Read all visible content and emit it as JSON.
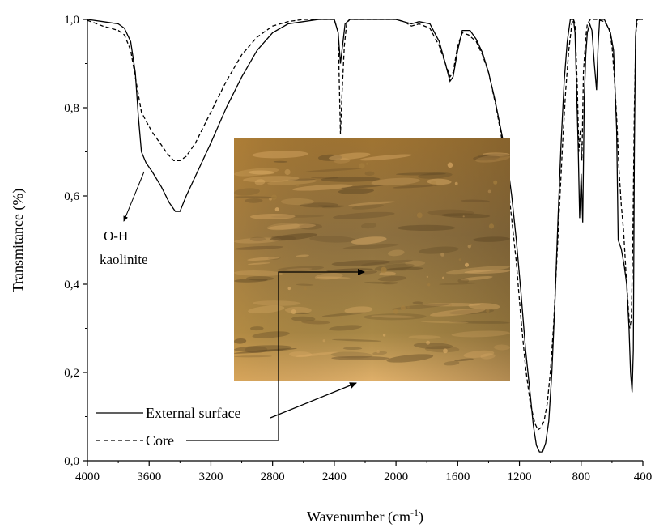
{
  "chart_data": {
    "type": "line",
    "xlabel": "Wavenumber (cm",
    "xlabel_sup": "-1",
    "xlabel_end": ")",
    "ylabel": "Transmitance (%)",
    "xlim": [
      4000,
      400
    ],
    "ylim": [
      0.0,
      1.0
    ],
    "xticks": [
      4000,
      3600,
      3200,
      2800,
      2400,
      2000,
      1600,
      1200,
      800,
      400
    ],
    "yticks": [
      "0,0",
      "0,2",
      "0,4",
      "0,6",
      "0,8",
      "1,0"
    ],
    "yticks_values": [
      0.0,
      0.2,
      0.4,
      0.6,
      0.8,
      1.0
    ],
    "grid": false,
    "legend_position": "bottom-left",
    "annotation": {
      "line1": "O-H",
      "line2": "kaolinite"
    },
    "series": [
      {
        "name": "External surface",
        "style": "solid",
        "color": "#000000",
        "points": [
          [
            4000,
            1.0
          ],
          [
            3900,
            0.995
          ],
          [
            3800,
            0.99
          ],
          [
            3760,
            0.98
          ],
          [
            3720,
            0.95
          ],
          [
            3690,
            0.88
          ],
          [
            3670,
            0.78
          ],
          [
            3650,
            0.7
          ],
          [
            3620,
            0.675
          ],
          [
            3580,
            0.655
          ],
          [
            3520,
            0.62
          ],
          [
            3470,
            0.585
          ],
          [
            3430,
            0.565
          ],
          [
            3400,
            0.565
          ],
          [
            3360,
            0.6
          ],
          [
            3300,
            0.645
          ],
          [
            3200,
            0.72
          ],
          [
            3100,
            0.8
          ],
          [
            3000,
            0.87
          ],
          [
            2900,
            0.93
          ],
          [
            2800,
            0.97
          ],
          [
            2700,
            0.99
          ],
          [
            2600,
            0.995
          ],
          [
            2500,
            1.0
          ],
          [
            2400,
            1.0
          ],
          [
            2375,
            0.97
          ],
          [
            2360,
            0.9
          ],
          [
            2345,
            0.945
          ],
          [
            2330,
            0.99
          ],
          [
            2300,
            1.0
          ],
          [
            2000,
            1.0
          ],
          [
            1950,
            0.995
          ],
          [
            1900,
            0.99
          ],
          [
            1850,
            0.995
          ],
          [
            1780,
            0.99
          ],
          [
            1720,
            0.95
          ],
          [
            1680,
            0.9
          ],
          [
            1650,
            0.86
          ],
          [
            1630,
            0.87
          ],
          [
            1600,
            0.93
          ],
          [
            1570,
            0.975
          ],
          [
            1520,
            0.975
          ],
          [
            1480,
            0.955
          ],
          [
            1440,
            0.925
          ],
          [
            1400,
            0.88
          ],
          [
            1360,
            0.82
          ],
          [
            1320,
            0.75
          ],
          [
            1280,
            0.68
          ],
          [
            1250,
            0.6
          ],
          [
            1220,
            0.5
          ],
          [
            1190,
            0.38
          ],
          [
            1160,
            0.25
          ],
          [
            1130,
            0.15
          ],
          [
            1110,
            0.08
          ],
          [
            1090,
            0.035
          ],
          [
            1070,
            0.02
          ],
          [
            1050,
            0.02
          ],
          [
            1030,
            0.04
          ],
          [
            1010,
            0.09
          ],
          [
            990,
            0.2
          ],
          [
            970,
            0.36
          ],
          [
            950,
            0.55
          ],
          [
            930,
            0.72
          ],
          [
            910,
            0.86
          ],
          [
            890,
            0.95
          ],
          [
            870,
            1.0
          ],
          [
            850,
            1.0
          ],
          [
            840,
            0.97
          ],
          [
            820,
            0.72
          ],
          [
            810,
            0.55
          ],
          [
            800,
            0.65
          ],
          [
            790,
            0.54
          ],
          [
            780,
            0.82
          ],
          [
            770,
            0.92
          ],
          [
            760,
            0.97
          ],
          [
            745,
            0.99
          ],
          [
            730,
            0.975
          ],
          [
            715,
            0.9
          ],
          [
            700,
            0.84
          ],
          [
            690,
            0.94
          ],
          [
            680,
            1.0
          ],
          [
            650,
            1.0
          ],
          [
            630,
            0.985
          ],
          [
            610,
            0.97
          ],
          [
            590,
            0.93
          ],
          [
            570,
            0.75
          ],
          [
            560,
            0.5
          ],
          [
            540,
            0.48
          ],
          [
            520,
            0.44
          ],
          [
            505,
            0.4
          ],
          [
            490,
            0.3
          ],
          [
            480,
            0.2
          ],
          [
            470,
            0.155
          ],
          [
            462,
            0.25
          ],
          [
            455,
            0.7
          ],
          [
            448,
            0.96
          ],
          [
            440,
            1.0
          ],
          [
            400,
            1.0
          ]
        ]
      },
      {
        "name": "Core",
        "style": "dashed",
        "color": "#000000",
        "points": [
          [
            4000,
            0.998
          ],
          [
            3900,
            0.985
          ],
          [
            3800,
            0.975
          ],
          [
            3760,
            0.965
          ],
          [
            3720,
            0.93
          ],
          [
            3690,
            0.87
          ],
          [
            3670,
            0.83
          ],
          [
            3650,
            0.79
          ],
          [
            3620,
            0.77
          ],
          [
            3580,
            0.745
          ],
          [
            3530,
            0.72
          ],
          [
            3480,
            0.695
          ],
          [
            3440,
            0.68
          ],
          [
            3400,
            0.68
          ],
          [
            3360,
            0.69
          ],
          [
            3300,
            0.72
          ],
          [
            3200,
            0.79
          ],
          [
            3100,
            0.86
          ],
          [
            3000,
            0.92
          ],
          [
            2900,
            0.96
          ],
          [
            2800,
            0.985
          ],
          [
            2700,
            0.995
          ],
          [
            2600,
            1.0
          ],
          [
            2400,
            1.0
          ],
          [
            2375,
            0.97
          ],
          [
            2360,
            0.74
          ],
          [
            2350,
            0.83
          ],
          [
            2335,
            0.94
          ],
          [
            2320,
            0.99
          ],
          [
            2300,
            1.0
          ],
          [
            2000,
            1.0
          ],
          [
            1950,
            0.995
          ],
          [
            1900,
            0.985
          ],
          [
            1850,
            0.99
          ],
          [
            1780,
            0.98
          ],
          [
            1720,
            0.94
          ],
          [
            1680,
            0.9
          ],
          [
            1650,
            0.87
          ],
          [
            1630,
            0.88
          ],
          [
            1600,
            0.94
          ],
          [
            1570,
            0.97
          ],
          [
            1530,
            0.965
          ],
          [
            1480,
            0.95
          ],
          [
            1440,
            0.92
          ],
          [
            1400,
            0.88
          ],
          [
            1350,
            0.8
          ],
          [
            1300,
            0.7
          ],
          [
            1260,
            0.58
          ],
          [
            1220,
            0.45
          ],
          [
            1190,
            0.32
          ],
          [
            1160,
            0.21
          ],
          [
            1130,
            0.13
          ],
          [
            1100,
            0.085
          ],
          [
            1080,
            0.07
          ],
          [
            1060,
            0.075
          ],
          [
            1040,
            0.09
          ],
          [
            1020,
            0.13
          ],
          [
            1000,
            0.2
          ],
          [
            980,
            0.3
          ],
          [
            960,
            0.44
          ],
          [
            940,
            0.58
          ],
          [
            920,
            0.72
          ],
          [
            900,
            0.84
          ],
          [
            880,
            0.93
          ],
          [
            860,
            0.99
          ],
          [
            850,
            1.0
          ],
          [
            840,
            0.99
          ],
          [
            825,
            0.85
          ],
          [
            815,
            0.7
          ],
          [
            805,
            0.75
          ],
          [
            795,
            0.68
          ],
          [
            785,
            0.88
          ],
          [
            770,
            0.96
          ],
          [
            760,
            0.99
          ],
          [
            740,
            1.0
          ],
          [
            700,
            1.0
          ],
          [
            650,
            0.995
          ],
          [
            620,
            0.98
          ],
          [
            600,
            0.94
          ],
          [
            585,
            0.87
          ],
          [
            570,
            0.78
          ],
          [
            555,
            0.66
          ],
          [
            540,
            0.58
          ],
          [
            525,
            0.52
          ],
          [
            510,
            0.43
          ],
          [
            495,
            0.35
          ],
          [
            485,
            0.3
          ],
          [
            475,
            0.32
          ],
          [
            465,
            0.5
          ],
          [
            455,
            0.8
          ],
          [
            445,
            0.97
          ],
          [
            435,
            1.0
          ],
          [
            400,
            1.0
          ]
        ]
      }
    ]
  },
  "inset_photo": {
    "colors": {
      "light": "#e0b06a",
      "mid": "#a67f3e",
      "dark": "#5b4423"
    }
  }
}
